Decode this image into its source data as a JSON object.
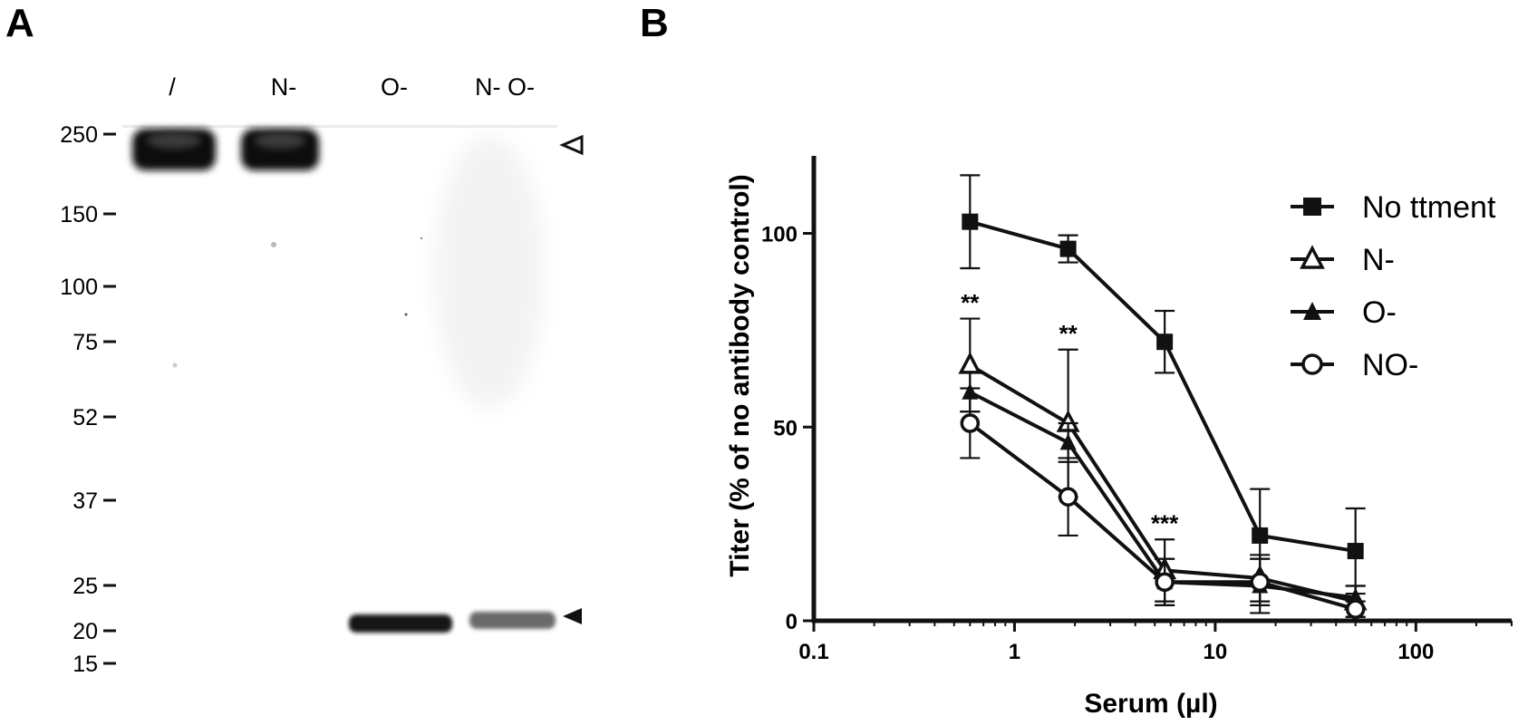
{
  "panel_a": {
    "letter": "A",
    "lanes": [
      "/",
      "N-",
      "O-",
      "N- O-"
    ],
    "mw_markers": [
      "250",
      "150",
      "100",
      "75",
      "52",
      "37",
      "25",
      "20",
      "15"
    ],
    "arrows": [
      "open-triangle-arrow",
      "filled-triangle-arrow"
    ]
  },
  "panel_b": {
    "letter": "B"
  },
  "chart_data": {
    "type": "line",
    "xlabel": "Serum (µl)",
    "ylabel": "Titer (% of no antibody control)",
    "xscale": "log",
    "xlim": [
      0.1,
      300
    ],
    "ylim": [
      0,
      120
    ],
    "xticks": [
      0.1,
      1,
      10,
      100
    ],
    "xtick_labels": [
      "0.1",
      "1",
      "10",
      "100"
    ],
    "yticks": [
      0,
      50,
      100
    ],
    "ytick_labels": [
      "0",
      "50",
      "100"
    ],
    "grid": false,
    "legend_position": "top-right",
    "x": [
      0.6,
      1.85,
      5.6,
      16.7,
      50
    ],
    "series": [
      {
        "name": "No ttment",
        "marker": "filled-square",
        "values": [
          103,
          96,
          72,
          22,
          18
        ],
        "errors": [
          12,
          3.5,
          8,
          12,
          11
        ]
      },
      {
        "name": "N-",
        "marker": "open-triangle",
        "values": [
          66,
          51,
          13,
          11,
          5
        ],
        "errors": [
          12,
          19,
          8,
          6,
          4
        ]
      },
      {
        "name": "O-",
        "marker": "filled-triangle",
        "values": [
          59,
          46,
          10,
          9,
          6
        ],
        "errors": [
          5,
          5,
          6,
          7,
          3
        ]
      },
      {
        "name": "NO-",
        "marker": "open-circle",
        "values": [
          51,
          32,
          10,
          10,
          3
        ],
        "errors": [
          9,
          10,
          6,
          6,
          2
        ]
      }
    ],
    "annotations": [
      {
        "x": 0.6,
        "y": 80,
        "text": "**"
      },
      {
        "x": 1.85,
        "y": 72,
        "text": "**"
      },
      {
        "x": 5.6,
        "y": 23,
        "text": "***"
      }
    ]
  }
}
